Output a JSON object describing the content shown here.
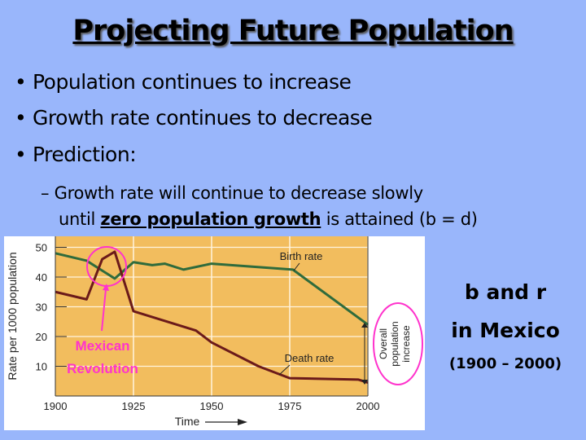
{
  "slide": {
    "title": "Projecting Future Population",
    "bullets": [
      "Population continues to increase",
      "Growth rate continues to decrease",
      "Prediction:"
    ],
    "sub_bullet": {
      "dash": "–",
      "line1": "Growth rate will continue to decrease slowly",
      "line2_before": "until ",
      "line2_emph": "zero population growth",
      "line2_after": " is attained (b = d)"
    },
    "side_text": {
      "line1": "b and r",
      "line2": "in Mexico",
      "line3": "(1900 – 2000)"
    },
    "bullet_glyph": "•"
  },
  "chart_data": {
    "type": "line",
    "xlabel": "Time",
    "ylabel": "Rate per 1000 population",
    "xlim": [
      1900,
      2000
    ],
    "ylim": [
      0,
      52
    ],
    "xticks": [
      1900,
      1925,
      1950,
      1975,
      2000
    ],
    "yticks": [
      10,
      20,
      30,
      40,
      50
    ],
    "grid": true,
    "colors": {
      "background": "#f2bd5e",
      "birth": "#2f6b3c",
      "death": "#6b1a1a",
      "annotation": "#ff33cc"
    },
    "series": [
      {
        "name": "Birth rate",
        "x": [
          1900,
          1910,
          1919,
          1925,
          1931,
          1935,
          1941,
          1950,
          1976,
          2000
        ],
        "y": [
          48,
          45.5,
          39.5,
          45,
          44,
          44.5,
          42.5,
          44.5,
          42.5,
          24
        ]
      },
      {
        "name": "Death rate",
        "x": [
          1900,
          1910,
          1915,
          1919,
          1925,
          1945,
          1950,
          1965,
          1975,
          1997,
          2000
        ],
        "y": [
          35,
          32.5,
          46,
          48.5,
          28.5,
          22,
          18,
          10,
          6,
          5.5,
          4.5
        ]
      }
    ],
    "annotations": {
      "event_line1": "Mexican",
      "event_line2": "Revolution",
      "gap_line1": "Overall",
      "gap_line2": "population",
      "gap_line3": "increase"
    }
  }
}
